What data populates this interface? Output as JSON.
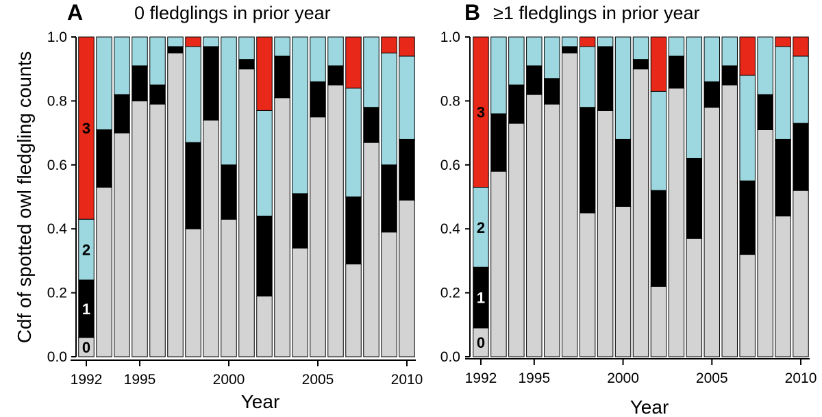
{
  "colors": {
    "c0": "#d3d3d3",
    "c1": "#000000",
    "c2": "#9dd8e0",
    "c3": "#e8291a"
  },
  "chart_data": [
    {
      "type": "bar",
      "stacked": true,
      "panel_letter": "A",
      "title": "0 fledglings in prior year",
      "xlabel": "Year",
      "ylabel": "Cdf of spotted owl fledgling counts",
      "ylim": [
        0,
        1
      ],
      "yticks": [
        "0.0",
        "0.2",
        "0.4",
        "0.6",
        "0.8",
        "1.0"
      ],
      "xticks": [
        "1992",
        "1995",
        "2000",
        "2005",
        "2010"
      ],
      "categories": [
        1992,
        1993,
        1994,
        1995,
        1996,
        1997,
        1998,
        1999,
        2000,
        2001,
        2002,
        2003,
        2004,
        2005,
        2006,
        2007,
        2008,
        2009,
        2010
      ],
      "segment_labels": [
        "0",
        "1",
        "2",
        "3"
      ],
      "cumulative": {
        "le0": [
          0.06,
          0.53,
          0.7,
          0.8,
          0.79,
          0.95,
          0.4,
          0.74,
          0.43,
          0.9,
          0.19,
          0.81,
          0.34,
          0.75,
          0.85,
          0.29,
          0.67,
          0.39,
          0.49
        ],
        "le1": [
          0.24,
          0.71,
          0.82,
          0.91,
          0.85,
          0.97,
          0.67,
          0.97,
          0.6,
          0.93,
          0.44,
          0.94,
          0.51,
          0.86,
          0.91,
          0.5,
          0.78,
          0.6,
          0.68
        ],
        "le2": [
          0.43,
          1.0,
          1.0,
          1.0,
          1.0,
          1.0,
          0.97,
          1.0,
          1.0,
          1.0,
          0.77,
          1.0,
          1.0,
          1.0,
          1.0,
          0.84,
          1.0,
          0.95,
          0.94
        ],
        "le3": [
          1,
          1,
          1,
          1,
          1,
          1,
          1,
          1,
          1,
          1,
          1,
          1,
          1,
          1,
          1,
          1,
          1,
          1,
          1
        ]
      }
    },
    {
      "type": "bar",
      "stacked": true,
      "panel_letter": "B",
      "title": "≥1 fledglings in prior year",
      "xlabel": "Year",
      "ylabel": "",
      "ylim": [
        0,
        1
      ],
      "yticks": [
        "0.0",
        "0.2",
        "0.4",
        "0.6",
        "0.8",
        "1.0"
      ],
      "xticks": [
        "1992",
        "1995",
        "2000",
        "2005",
        "2010"
      ],
      "categories": [
        1992,
        1993,
        1994,
        1995,
        1996,
        1997,
        1998,
        1999,
        2000,
        2001,
        2002,
        2003,
        2004,
        2005,
        2006,
        2007,
        2008,
        2009,
        2010
      ],
      "segment_labels": [
        "0",
        "1",
        "2",
        "3"
      ],
      "cumulative": {
        "le0": [
          0.09,
          0.58,
          0.73,
          0.82,
          0.79,
          0.95,
          0.45,
          0.77,
          0.47,
          0.9,
          0.22,
          0.84,
          0.37,
          0.78,
          0.85,
          0.32,
          0.71,
          0.44,
          0.52
        ],
        "le1": [
          0.28,
          0.76,
          0.85,
          0.91,
          0.87,
          0.97,
          0.78,
          0.97,
          0.68,
          0.93,
          0.52,
          0.94,
          0.62,
          0.86,
          0.91,
          0.55,
          0.82,
          0.68,
          0.73
        ],
        "le2": [
          0.53,
          1.0,
          1.0,
          1.0,
          1.0,
          1.0,
          0.97,
          1.0,
          1.0,
          1.0,
          0.83,
          1.0,
          1.0,
          1.0,
          1.0,
          0.88,
          1.0,
          0.97,
          0.94
        ],
        "le3": [
          1,
          1,
          1,
          1,
          1,
          1,
          1,
          1,
          1,
          1,
          1,
          1,
          1,
          1,
          1,
          1,
          1,
          1,
          1
        ]
      }
    }
  ]
}
